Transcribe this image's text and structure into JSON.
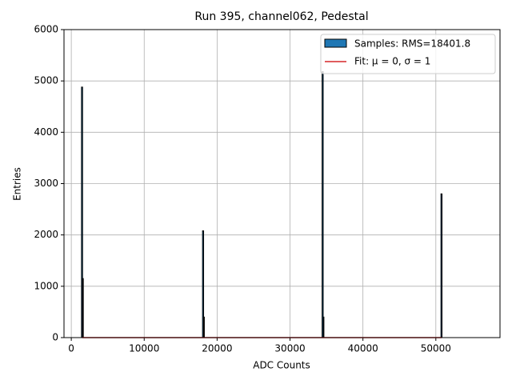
{
  "chart_data": {
    "type": "histogram",
    "title": "Run 395, channel062, Pedestal",
    "xlabel": "ADC Counts",
    "ylabel": "Entries",
    "bins": [
      1400,
      1550,
      1650,
      18000,
      18150,
      18250,
      34400,
      34550,
      34650,
      50700,
      50850
    ],
    "counts": [
      4880,
      1150,
      0,
      2080,
      400,
      0,
      5180,
      400,
      0,
      2800
    ],
    "hist_name": "Samples: RMS=18401.8",
    "color": "#1f77b4",
    "edgecolor": "#000000",
    "fit": {
      "name": "Fit: μ = 0, σ = 1",
      "color": "#d62728",
      "x": [
        1500,
        50800
      ],
      "values": [
        0,
        0
      ]
    },
    "xlim": [
      -1000,
      58800
    ],
    "ylim": [
      0,
      6000
    ],
    "xticks": [
      0,
      10000,
      20000,
      30000,
      40000,
      50000
    ],
    "yticks": [
      0,
      1000,
      2000,
      3000,
      4000,
      5000,
      6000
    ],
    "grid": true,
    "legend": "upper right"
  }
}
